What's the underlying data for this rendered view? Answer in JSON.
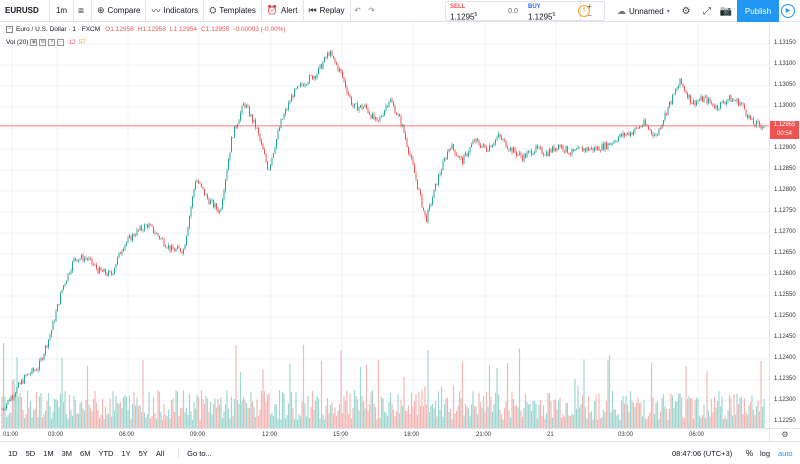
{
  "toolbar": {
    "symbol": "EURUSD",
    "timeframe": "1m",
    "compare": "Compare",
    "indicators": "Indicators",
    "templates": "Templates",
    "alert": "Alert",
    "replay": "Replay",
    "layout_name": "Unnamed",
    "publish": "Publish"
  },
  "trade": {
    "sell_label": "SELL",
    "sell_price": "1.1295",
    "sell_sup": "5",
    "spread": "0.0",
    "buy_label": "BUY",
    "buy_price": "1.1295",
    "buy_sup": "5"
  },
  "legend": {
    "title": "Euro / U.S. Dollar · 1 · FXCM",
    "open": "O1.12958",
    "high": "H1.12958",
    "low": "L1.12954",
    "close": "C1.12955",
    "change": "-0.00003 (-0.00%)",
    "vol_label": "Vol (20)",
    "vol_value": "12",
    "vol_ma": "57"
  },
  "colors": {
    "up": "#26a69a",
    "down": "#ef5350",
    "vol_up": "#9fd8d2",
    "vol_down": "#f5b7b4",
    "last_line": "#ef5350",
    "accent": "#2196f3"
  },
  "price_axis": {
    "ticks": [
      "1.13150",
      "1.13100",
      "1.13050",
      "1.13000",
      "1.12950",
      "1.12900",
      "1.12850",
      "1.12800",
      "1.12750",
      "1.12700",
      "1.12650",
      "1.12600",
      "1.12550",
      "1.12500",
      "1.12450",
      "1.12400",
      "1.12350",
      "1.12300",
      "1.12250"
    ],
    "last_price": "1.12955",
    "countdown": "00:54"
  },
  "time_axis": {
    "ticks": [
      "01:00",
      "03:00",
      "06:00",
      "09:00",
      "12:00",
      "15:00",
      "18:00",
      "21:00",
      "21",
      "03:00",
      "06:00"
    ]
  },
  "bottom": {
    "ranges": [
      "1D",
      "5D",
      "1M",
      "3M",
      "6M",
      "YTD",
      "1Y",
      "5Y",
      "All"
    ],
    "goto": "Go to...",
    "clock": "08:47:06 (UTC+3)",
    "percent": "%",
    "log": "log",
    "auto": "auto"
  },
  "chart_data": {
    "type": "candlestick",
    "symbol": "EURUSD",
    "interval": "1m",
    "ylim": [
      1.1222,
      1.1318
    ],
    "x_ticks": [
      "01:00",
      "03:00",
      "06:00",
      "09:00",
      "12:00",
      "15:00",
      "18:00",
      "21:00",
      "21",
      "03:00",
      "06:00"
    ],
    "close_path": [
      {
        "t": "00:00",
        "y": 1.1228
      },
      {
        "t": "01:00",
        "y": 1.1232
      },
      {
        "t": "02:00",
        "y": 1.1236
      },
      {
        "t": "02:30",
        "y": 1.1238
      },
      {
        "t": "03:00",
        "y": 1.1246
      },
      {
        "t": "03:30",
        "y": 1.1257
      },
      {
        "t": "04:00",
        "y": 1.1264
      },
      {
        "t": "04:30",
        "y": 1.1264
      },
      {
        "t": "05:00",
        "y": 1.1261
      },
      {
        "t": "05:30",
        "y": 1.126
      },
      {
        "t": "06:00",
        "y": 1.1267
      },
      {
        "t": "06:30",
        "y": 1.127
      },
      {
        "t": "07:00",
        "y": 1.1272
      },
      {
        "t": "07:30",
        "y": 1.1269
      },
      {
        "t": "08:00",
        "y": 1.1266
      },
      {
        "t": "08:30",
        "y": 1.1266
      },
      {
        "t": "09:00",
        "y": 1.1283
      },
      {
        "t": "09:30",
        "y": 1.1278
      },
      {
        "t": "10:00",
        "y": 1.1275
      },
      {
        "t": "10:30",
        "y": 1.1293
      },
      {
        "t": "11:00",
        "y": 1.1301
      },
      {
        "t": "11:30",
        "y": 1.1295
      },
      {
        "t": "12:00",
        "y": 1.1285
      },
      {
        "t": "12:30",
        "y": 1.1296
      },
      {
        "t": "13:00",
        "y": 1.1303
      },
      {
        "t": "13:30",
        "y": 1.1306
      },
      {
        "t": "14:00",
        "y": 1.1308
      },
      {
        "t": "14:30",
        "y": 1.1313
      },
      {
        "t": "15:00",
        "y": 1.1308
      },
      {
        "t": "15:30",
        "y": 1.13
      },
      {
        "t": "16:00",
        "y": 1.13
      },
      {
        "t": "16:30",
        "y": 1.1296
      },
      {
        "t": "17:00",
        "y": 1.1302
      },
      {
        "t": "17:30",
        "y": 1.1296
      },
      {
        "t": "18:00",
        "y": 1.1285
      },
      {
        "t": "18:30",
        "y": 1.1273
      },
      {
        "t": "19:00",
        "y": 1.1283
      },
      {
        "t": "19:30",
        "y": 1.1291
      },
      {
        "t": "20:00",
        "y": 1.1287
      },
      {
        "t": "20:30",
        "y": 1.1292
      },
      {
        "t": "21:00",
        "y": 1.129
      },
      {
        "t": "21:30",
        "y": 1.1293
      },
      {
        "t": "22:00",
        "y": 1.129
      },
      {
        "t": "22:30",
        "y": 1.1288
      },
      {
        "t": "23:00",
        "y": 1.129
      },
      {
        "t": "23:30",
        "y": 1.1289
      },
      {
        "t": "00:00",
        "y": 1.1291
      },
      {
        "t": "00:30",
        "y": 1.1289
      },
      {
        "t": "01:00",
        "y": 1.129
      },
      {
        "t": "01:30",
        "y": 1.129
      },
      {
        "t": "02:00",
        "y": 1.1291
      },
      {
        "t": "02:30",
        "y": 1.1293
      },
      {
        "t": "03:00",
        "y": 1.1294
      },
      {
        "t": "03:30",
        "y": 1.1296
      },
      {
        "t": "04:00",
        "y": 1.1293
      },
      {
        "t": "04:30",
        "y": 1.13
      },
      {
        "t": "05:00",
        "y": 1.1306
      },
      {
        "t": "05:30",
        "y": 1.1301
      },
      {
        "t": "06:00",
        "y": 1.1302
      },
      {
        "t": "06:30",
        "y": 1.13
      },
      {
        "t": "07:00",
        "y": 1.1302
      },
      {
        "t": "07:30",
        "y": 1.1301
      },
      {
        "t": "08:00",
        "y": 1.1296
      },
      {
        "t": "08:30",
        "y": 1.12955
      }
    ],
    "last_price": 1.12955
  }
}
